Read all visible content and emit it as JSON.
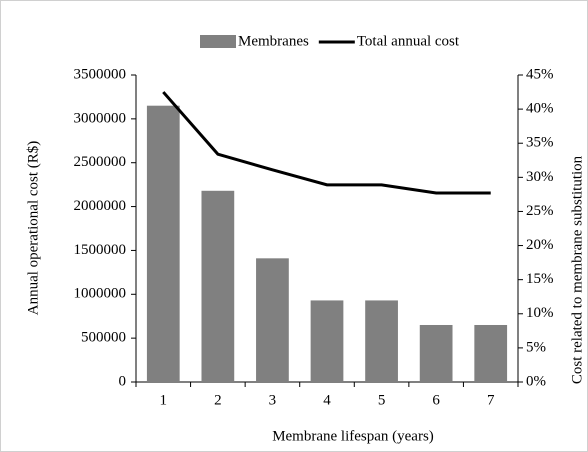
{
  "chart_data": {
    "type": "bar",
    "x_label": "Membrane lifespan (years)",
    "y_label": "Annual operational cost (R$)",
    "y2_label": "Cost related to membrane substitution",
    "categories": [
      "1",
      "2",
      "3",
      "4",
      "5",
      "6",
      "7"
    ],
    "series": [
      {
        "name": "Membranes",
        "type": "bar",
        "color": "#808080",
        "values": [
          3150000,
          2180000,
          1410000,
          930000,
          930000,
          650000,
          650000
        ]
      },
      {
        "name": "Total annual cost",
        "type": "line",
        "axis": "y2",
        "color": "#000000",
        "values": [
          42.5,
          33.4,
          31.1,
          28.9,
          28.9,
          27.7,
          27.7
        ]
      }
    ],
    "ylim": [
      0,
      3500000
    ],
    "yticks": [
      0,
      500000,
      1000000,
      1500000,
      2000000,
      2500000,
      3000000,
      3500000
    ],
    "y2lim": [
      0,
      45
    ],
    "y2ticks": [
      {
        "value": 0,
        "label": "0%"
      },
      {
        "value": 5,
        "label": "5%"
      },
      {
        "value": 10,
        "label": "10%"
      },
      {
        "value": 15,
        "label": "15%"
      },
      {
        "value": 20,
        "label": "20%"
      },
      {
        "value": 25,
        "label": "25%"
      },
      {
        "value": 30,
        "label": "30%"
      },
      {
        "value": 35,
        "label": "35%"
      },
      {
        "value": 40,
        "label": "40%"
      },
      {
        "value": 45,
        "label": "45%"
      }
    ],
    "legend": "top",
    "grid": false
  }
}
